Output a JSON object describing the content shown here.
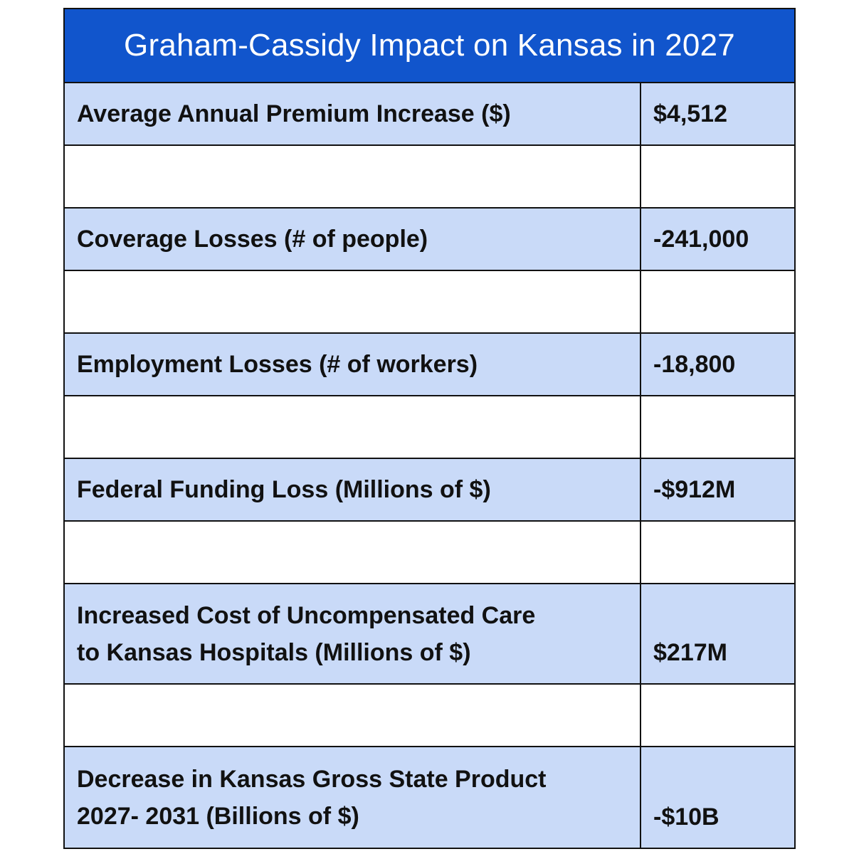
{
  "title": "Graham-Cassidy Impact on Kansas in 2027",
  "rows": [
    {
      "label": "Average Annual Premium Increase ($)",
      "value": "$4,512"
    },
    {
      "label": "Coverage Losses (# of people)",
      "value": "-241,000"
    },
    {
      "label": "Employment Losses (# of workers)",
      "value": "-18,800"
    },
    {
      "label": "Federal Funding Loss (Millions of $)",
      "value": "-$912M"
    },
    {
      "label_line1": "Increased Cost of Uncompensated Care",
      "label_line2": "to Kansas Hospitals (Millions of $)",
      "value": "$217M"
    },
    {
      "label_line1": "Decrease in Kansas Gross State Product",
      "label_line2": "2027- 2031 (Billions of $)",
      "value": "-$10B"
    }
  ],
  "colors": {
    "header_bg": "#1155cc",
    "header_text": "#ffffff",
    "data_row_bg": "#c9daf8",
    "blank_row_bg": "#ffffff",
    "border": "#111111"
  }
}
